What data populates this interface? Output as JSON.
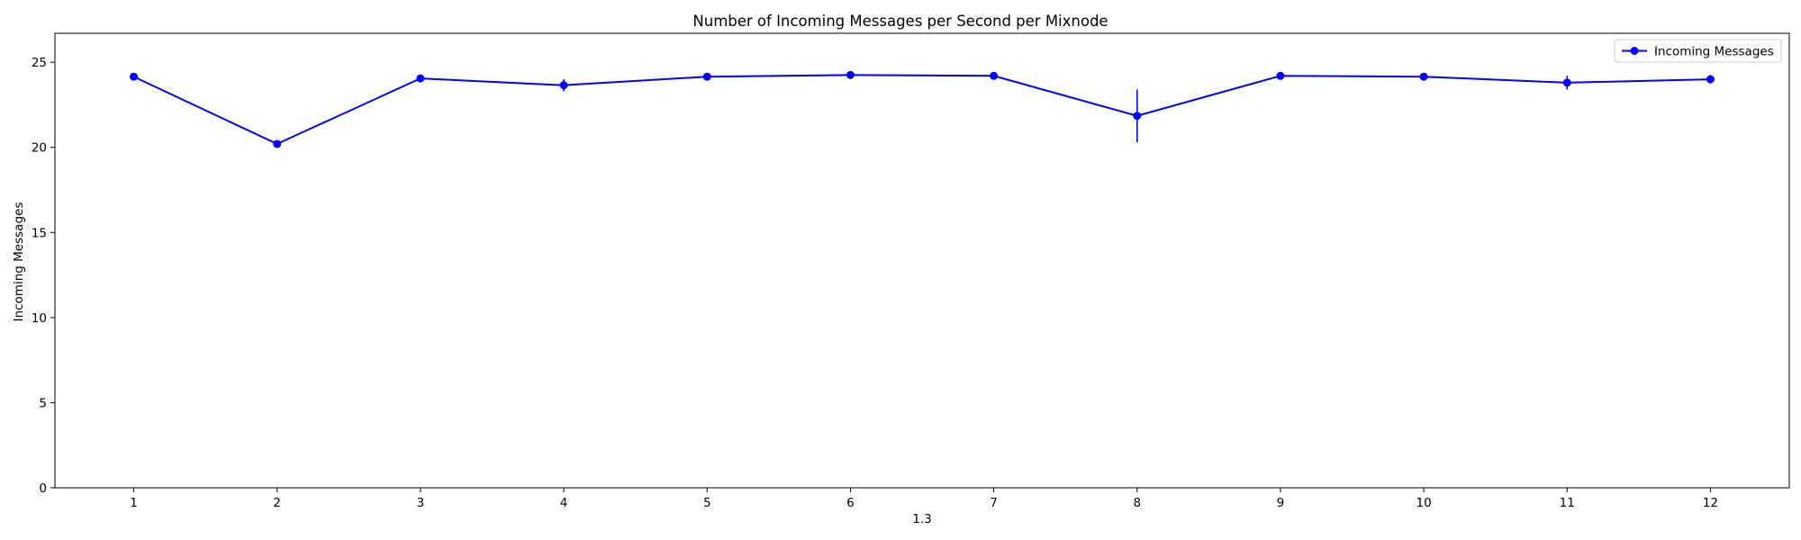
{
  "chart_data": {
    "type": "line",
    "title": "Number of Incoming Messages per Second per Mixnode",
    "xlabel": "1.3",
    "ylabel": "Incoming Messages",
    "x": [
      1,
      2,
      3,
      4,
      5,
      6,
      7,
      8,
      9,
      10,
      11,
      12
    ],
    "xticks": [
      1,
      2,
      3,
      4,
      5,
      6,
      7,
      8,
      9,
      10,
      11,
      12
    ],
    "yticks": [
      0,
      5,
      10,
      15,
      20,
      25
    ],
    "xlim": [
      0.45,
      12.55
    ],
    "ylim": [
      0,
      26.7
    ],
    "grid": false,
    "legend_position": "top-right",
    "series": [
      {
        "name": "Incoming Messages",
        "color": "#0000ff",
        "marker": "circle",
        "values": [
          24.15,
          20.2,
          24.05,
          23.65,
          24.15,
          24.25,
          24.2,
          21.85,
          24.2,
          24.15,
          23.8,
          24.0
        ],
        "errors": [
          0.15,
          0.15,
          0.2,
          0.35,
          0.15,
          0.15,
          0.15,
          1.55,
          0.15,
          0.15,
          0.4,
          0.25
        ]
      }
    ]
  }
}
